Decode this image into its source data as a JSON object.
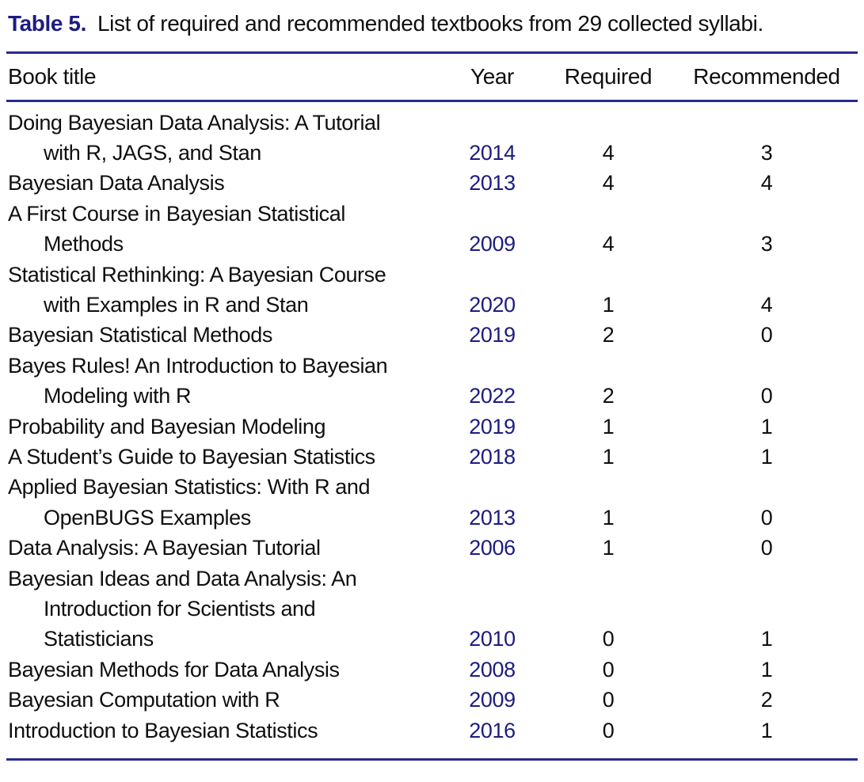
{
  "caption": {
    "label": "Table 5.",
    "text": "List of required and recommended textbooks from 29 collected syllabi."
  },
  "colors": {
    "accent_navy_text": "#1c1c80",
    "rule_navy": "#2a2a92",
    "body_text": "#0f0f0f",
    "background": "#ffffff"
  },
  "table": {
    "columns": [
      "Book title",
      "Year",
      "Required",
      "Recommended"
    ],
    "books": [
      {
        "title_lines": [
          "Doing Bayesian Data Analysis: A Tutorial",
          "with R, JAGS, and Stan"
        ],
        "year": "2014",
        "required": "4",
        "recommended": "3"
      },
      {
        "title_lines": [
          "Bayesian Data Analysis"
        ],
        "year": "2013",
        "required": "4",
        "recommended": "4"
      },
      {
        "title_lines": [
          "A First Course in Bayesian Statistical",
          "Methods"
        ],
        "year": "2009",
        "required": "4",
        "recommended": "3"
      },
      {
        "title_lines": [
          "Statistical Rethinking: A Bayesian Course",
          "with Examples in R and Stan"
        ],
        "year": "2020",
        "required": "1",
        "recommended": "4"
      },
      {
        "title_lines": [
          "Bayesian Statistical Methods"
        ],
        "year": "2019",
        "required": "2",
        "recommended": "0"
      },
      {
        "title_lines": [
          "Bayes Rules! An Introduction to Bayesian",
          "Modeling with R"
        ],
        "year": "2022",
        "required": "2",
        "recommended": "0"
      },
      {
        "title_lines": [
          "Probability and Bayesian Modeling"
        ],
        "year": "2019",
        "required": "1",
        "recommended": "1"
      },
      {
        "title_lines": [
          "A Student’s Guide to Bayesian Statistics"
        ],
        "year": "2018",
        "required": "1",
        "recommended": "1"
      },
      {
        "title_lines": [
          "Applied Bayesian Statistics: With R and",
          "OpenBUGS Examples"
        ],
        "year": "2013",
        "required": "1",
        "recommended": "0"
      },
      {
        "title_lines": [
          "Data Analysis: A Bayesian Tutorial"
        ],
        "year": "2006",
        "required": "1",
        "recommended": "0"
      },
      {
        "title_lines": [
          "Bayesian Ideas and Data Analysis: An",
          "Introduction for Scientists and",
          "Statisticians"
        ],
        "year": "2010",
        "required": "0",
        "recommended": "1"
      },
      {
        "title_lines": [
          "Bayesian Methods for Data Analysis"
        ],
        "year": "2008",
        "required": "0",
        "recommended": "1"
      },
      {
        "title_lines": [
          "Bayesian Computation with R"
        ],
        "year": "2009",
        "required": "0",
        "recommended": "2"
      },
      {
        "title_lines": [
          "Introduction to Bayesian Statistics"
        ],
        "year": "2016",
        "required": "0",
        "recommended": "1"
      }
    ]
  }
}
